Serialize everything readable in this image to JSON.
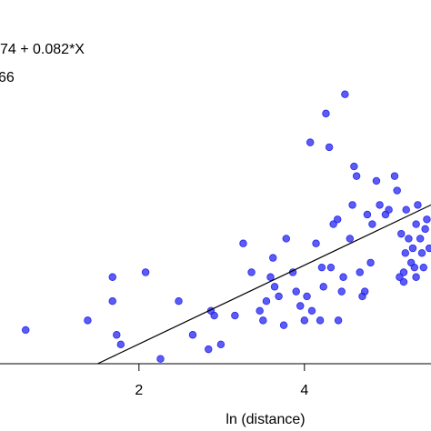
{
  "chart_data": {
    "type": "scatter",
    "annotations": [
      "74 + 0.082*X",
      "66"
    ],
    "x_label": "ln (distance)",
    "color": "#2626f0",
    "x": [
      0.63,
      1.38,
      1.68,
      1.68,
      1.73,
      1.78,
      2.08,
      2.26,
      2.48,
      2.65,
      2.84,
      2.87,
      2.91,
      2.99,
      3.16,
      3.26,
      3.36,
      3.46,
      3.5,
      3.54,
      3.59,
      3.62,
      3.64,
      3.69,
      3.75,
      3.86,
      3.9,
      3.95,
      4.0,
      4.03,
      4.07,
      4.09,
      4.19,
      4.21,
      4.23,
      4.26,
      4.3,
      4.32,
      4.35,
      4.4,
      4.41,
      4.45,
      4.47,
      4.49,
      4.55,
      4.58,
      4.6,
      4.63,
      4.67,
      4.7,
      4.73,
      4.76,
      4.8,
      4.82,
      4.87,
      4.91,
      4.98,
      5.02,
      5.09,
      5.12,
      5.15,
      5.17,
      5.2,
      5.22,
      5.23,
      5.26,
      5.29,
      5.31,
      5.33,
      5.35,
      5.37,
      5.4,
      5.42,
      5.44,
      5.46,
      5.48,
      5.51,
      5.2,
      5.35,
      4.14,
      3.78
    ],
    "values": [
      0.07,
      0.09,
      0.18,
      0.13,
      0.06,
      0.04,
      0.19,
      0.01,
      0.13,
      0.06,
      0.03,
      0.11,
      0.1,
      0.04,
      0.1,
      0.25,
      0.19,
      0.11,
      0.09,
      0.13,
      0.18,
      0.22,
      0.16,
      0.14,
      0.08,
      0.19,
      0.15,
      0.12,
      0.09,
      0.14,
      0.46,
      0.11,
      0.09,
      0.2,
      0.16,
      0.52,
      0.45,
      0.2,
      0.29,
      0.3,
      0.09,
      0.15,
      0.18,
      0.56,
      0.26,
      0.33,
      0.41,
      0.39,
      0.19,
      0.14,
      0.15,
      0.31,
      0.21,
      0.29,
      0.38,
      0.33,
      0.31,
      0.32,
      0.39,
      0.36,
      0.18,
      0.27,
      0.19,
      0.23,
      0.32,
      0.26,
      0.21,
      0.24,
      0.2,
      0.29,
      0.33,
      0.26,
      0.23,
      0.2,
      0.28,
      0.3,
      0.24,
      0.17,
      0.18,
      0.25,
      0.26
    ],
    "fit": {
      "x": [
        1.5,
        5.53
      ],
      "values": [
        0,
        0.33
      ],
      "color": "#000000"
    },
    "xlim": [
      0.32,
      5.53
    ],
    "ylim": [
      0,
      0.756
    ],
    "xticks": [
      2,
      4
    ]
  }
}
